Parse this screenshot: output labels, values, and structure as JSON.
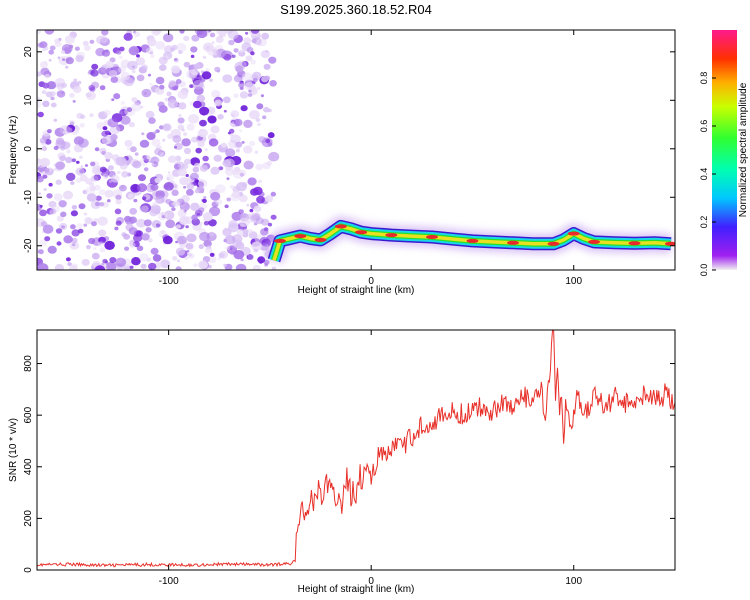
{
  "title": "S199.2025.360.18.52.R04",
  "colors": {
    "snr_line": "#e8312a",
    "noise_purple": "#7a2be0",
    "ridge_cyan": "#18d8e8",
    "ridge_green": "#28e028",
    "ridge_red": "#e82a2a"
  },
  "chart_data": [
    {
      "type": "heatmap",
      "title": "S199.2025.360.18.52.R04",
      "xlabel": "Height of straight line (km)",
      "ylabel": "Frequency (Hz)",
      "xlim": [
        -165,
        150
      ],
      "ylim": [
        -25,
        24.5
      ],
      "x_ticks": [
        "-100",
        "0",
        "100"
      ],
      "y_ticks": [
        "20",
        "10",
        "0",
        "-10",
        "-20"
      ],
      "noise_region_x": [
        -165,
        -48
      ],
      "ridge": {
        "x": [
          -48,
          -45,
          -40,
          -35,
          -30,
          -25,
          -20,
          -15,
          -10,
          -5,
          0,
          10,
          20,
          30,
          40,
          50,
          60,
          70,
          80,
          90,
          95,
          100,
          105,
          110,
          120,
          130,
          140,
          148
        ],
        "freq": [
          -23,
          -19,
          -18.5,
          -18,
          -18.5,
          -18.8,
          -17.5,
          -16,
          -16.5,
          -17.2,
          -17.5,
          -17.8,
          -18,
          -18.2,
          -18.6,
          -19,
          -19.2,
          -19.4,
          -19.6,
          -19.6,
          -18.8,
          -17.5,
          -18.5,
          -19.2,
          -19.4,
          -19.5,
          -19.4,
          -19.6
        ]
      },
      "colorbar": {
        "label": "Normalized spectral amplitude",
        "range": [
          0,
          1
        ],
        "ticks": [
          "0.0",
          "0.2",
          "0.4",
          "0.6",
          "0.8"
        ]
      }
    },
    {
      "type": "line",
      "xlabel": "Height of straight line (km)",
      "ylabel": "SNR (10 * v/v)",
      "xlim": [
        -165,
        150
      ],
      "ylim": [
        0,
        930
      ],
      "x_ticks": [
        "-100",
        "0",
        "100"
      ],
      "y_ticks": [
        "0",
        "200",
        "400",
        "600",
        "800"
      ],
      "series": [
        {
          "x": [
            -165,
            -150,
            -130,
            -110,
            -90,
            -70,
            -50,
            -40,
            -38,
            -36,
            -34,
            -32,
            -30,
            -28,
            -26,
            -24,
            -22,
            -20,
            -18,
            -16,
            -14,
            -12,
            -10,
            -8,
            -6,
            -4,
            -2,
            0,
            4,
            8,
            12,
            16,
            20,
            25,
            30,
            35,
            40,
            45,
            50,
            55,
            60,
            65,
            70,
            75,
            80,
            84,
            86,
            88,
            90,
            91,
            92,
            93,
            94,
            95,
            96,
            98,
            100,
            102,
            104,
            106,
            110,
            115,
            120,
            125,
            130,
            135,
            140,
            145,
            150
          ],
          "y": [
            20,
            22,
            18,
            21,
            19,
            23,
            20,
            25,
            40,
            150,
            260,
            200,
            300,
            250,
            330,
            280,
            340,
            300,
            260,
            320,
            250,
            350,
            300,
            290,
            380,
            330,
            420,
            370,
            450,
            430,
            500,
            470,
            520,
            560,
            580,
            590,
            610,
            600,
            620,
            630,
            620,
            650,
            630,
            670,
            650,
            700,
            560,
            760,
            940,
            620,
            800,
            560,
            700,
            480,
            620,
            580,
            600,
            680,
            640,
            600,
            700,
            620,
            680,
            640,
            660,
            690,
            650,
            680,
            650
          ]
        }
      ]
    }
  ]
}
